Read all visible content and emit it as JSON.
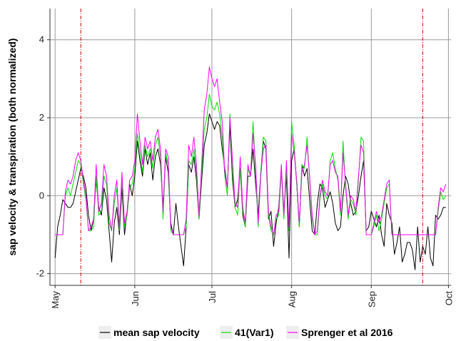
{
  "chart_data": {
    "type": "line",
    "title": "",
    "xlabel": "",
    "ylabel": "sap velocity & transpiration (both normalized)",
    "x_ticks": [
      "May",
      "Jun",
      "Jul",
      "Aug",
      "Sep",
      "Oct"
    ],
    "x_tick_days": [
      0,
      31,
      61,
      92,
      123,
      153
    ],
    "y_ticks": [
      -2,
      0,
      2,
      4
    ],
    "ylim": [
      -2.3,
      4.8
    ],
    "xlim_days": [
      -2,
      154
    ],
    "grid": true,
    "legend_position": "bottom",
    "vlines_days": [
      10,
      143
    ],
    "vline_color": "#cc0000",
    "colors": {
      "mean sap velocity": "#000000",
      "41(Var1)": "#00e000",
      "Sprenger et al 2016": "#ff00ff"
    },
    "series": [
      {
        "name": "mean sap velocity",
        "x": [
          0,
          1,
          2,
          3,
          4,
          5,
          6,
          7,
          8,
          9,
          10,
          11,
          12,
          13,
          14,
          15,
          16,
          17,
          18,
          19,
          20,
          21,
          22,
          23,
          24,
          25,
          26,
          27,
          28,
          29,
          30,
          31,
          32,
          33,
          34,
          35,
          36,
          37,
          38,
          39,
          40,
          41,
          42,
          43,
          44,
          45,
          46,
          47,
          48,
          49,
          50,
          51,
          52,
          53,
          54,
          55,
          56,
          57,
          58,
          59,
          60,
          61,
          62,
          63,
          64,
          65,
          66,
          67,
          68,
          69,
          70,
          71,
          72,
          73,
          74,
          75,
          76,
          77,
          78,
          79,
          80,
          81,
          82,
          83,
          84,
          85,
          86,
          87,
          88,
          89,
          90,
          91,
          92,
          93,
          94,
          95,
          96,
          97,
          98,
          99,
          100,
          101,
          102,
          103,
          104,
          105,
          106,
          107,
          108,
          109,
          110,
          111,
          112,
          113,
          114,
          115,
          116,
          117,
          118,
          119,
          120,
          121,
          122,
          123,
          124,
          125,
          126,
          127,
          128,
          129,
          130,
          131,
          132,
          133,
          134,
          135,
          136,
          137,
          138,
          139,
          140,
          141,
          142,
          143,
          144,
          145,
          146,
          147,
          148,
          149,
          150,
          151,
          152
        ],
        "values": [
          -1.6,
          -0.8,
          -0.5,
          -0.1,
          -0.2,
          -0.3,
          -0.3,
          -0.2,
          0.1,
          0.4,
          0.7,
          0.5,
          0.2,
          -0.5,
          -0.9,
          -0.6,
          0.4,
          -0.3,
          -0.5,
          0.2,
          -0.1,
          -0.9,
          -1.7,
          -0.7,
          -0.3,
          -1.0,
          0.2,
          -1.0,
          -0.4,
          0.3,
          0.0,
          0.5,
          1.4,
          0.9,
          0.5,
          1.2,
          0.8,
          1.1,
          0.4,
          1.0,
          1.2,
          0.8,
          -0.3,
          1.0,
          0.6,
          -0.7,
          -1.0,
          -0.2,
          -0.8,
          -1.3,
          -1.8,
          -0.8,
          0.8,
          0.6,
          1.0,
          0.4,
          -0.6,
          0.4,
          1.3,
          1.6,
          2.1,
          1.9,
          1.7,
          1.9,
          1.8,
          1.2,
          0.7,
          0.2,
          1.8,
          0.4,
          -0.3,
          -0.1,
          0.7,
          -0.5,
          -0.8,
          0.5,
          0.5,
          1.2,
          0.3,
          -0.5,
          0.6,
          1.4,
          1.2,
          -0.6,
          -0.4,
          -1.3,
          -0.7,
          -0.3,
          0.7,
          -0.4,
          0.5,
          -1.6,
          0.9,
          1.2,
          0.3,
          -0.8,
          0.8,
          0.5,
          0.7,
          -0.1,
          -0.9,
          -1.0,
          -0.2,
          0.3,
          0.2,
          -0.3,
          -0.1,
          0.1,
          -0.2,
          -0.7,
          -0.9,
          -0.8,
          0.0,
          0.5,
          0.3,
          -0.2,
          -0.5,
          -0.4,
          0.0,
          0.5,
          0.9,
          -0.9,
          -0.8,
          -0.4,
          -0.6,
          -0.8,
          -0.5,
          -1.0,
          -1.3,
          -0.2,
          -0.5,
          -0.7,
          -1.5,
          -1.2,
          -0.8,
          -1.7,
          -1.5,
          -1.2,
          -1.2,
          -1.4,
          -1.9,
          -0.8,
          -1.7,
          -1.3,
          -1.5,
          -0.8,
          -1.6,
          -1.8,
          -0.5,
          -0.6,
          -0.5,
          -0.3,
          -0.3
        ]
      },
      {
        "name": "41(Var1)",
        "x": [
          0,
          1,
          2,
          3,
          4,
          5,
          6,
          7,
          8,
          9,
          10,
          11,
          12,
          13,
          14,
          15,
          16,
          17,
          18,
          19,
          20,
          21,
          22,
          23,
          24,
          25,
          26,
          27,
          28,
          29,
          30,
          31,
          32,
          33,
          34,
          35,
          36,
          37,
          38,
          39,
          40,
          41,
          42,
          43,
          44,
          45,
          46,
          47,
          48,
          49,
          50,
          51,
          52,
          53,
          54,
          55,
          56,
          57,
          58,
          59,
          60,
          61,
          62,
          63,
          64,
          65,
          66,
          67,
          68,
          69,
          70,
          71,
          72,
          73,
          74,
          75,
          76,
          77,
          78,
          79,
          80,
          81,
          82,
          83,
          84,
          85,
          86,
          87,
          88,
          89,
          90,
          91,
          92,
          93,
          94,
          95,
          96,
          97,
          98,
          99,
          100,
          101,
          102,
          103,
          104,
          105,
          106,
          107,
          108,
          109,
          110,
          111,
          112,
          113,
          114,
          115,
          116,
          117,
          118,
          119,
          120,
          121,
          122,
          123,
          124,
          125,
          126,
          127,
          128,
          129,
          130,
          131,
          132,
          133,
          134,
          135,
          136,
          137,
          138,
          139,
          140,
          141,
          142,
          143,
          144,
          145,
          146,
          147,
          148,
          149,
          150,
          151,
          152
        ],
        "values": [
          -1.0,
          -1.0,
          -1.0,
          -1.0,
          0.0,
          0.2,
          0.0,
          0.3,
          0.6,
          0.9,
          0.8,
          0.3,
          -0.1,
          -0.9,
          -0.9,
          -0.8,
          0.5,
          -0.5,
          -0.4,
          0.5,
          0.3,
          -0.7,
          -0.9,
          -0.2,
          0.2,
          -0.9,
          0.4,
          -0.8,
          -0.5,
          0.2,
          0.3,
          0.7,
          1.6,
          1.1,
          0.6,
          1.3,
          1.0,
          1.2,
          0.7,
          1.3,
          1.5,
          1.0,
          -0.6,
          1.1,
          0.8,
          -0.9,
          -1.0,
          -1.0,
          -1.0,
          -1.0,
          -1.0,
          -0.8,
          0.9,
          0.8,
          1.2,
          0.6,
          -0.6,
          0.6,
          1.7,
          2.0,
          2.6,
          2.3,
          2.2,
          2.4,
          2.1,
          1.5,
          0.5,
          0.0,
          2.1,
          0.6,
          -0.3,
          -0.5,
          0.7,
          -0.4,
          -0.8,
          0.7,
          0.5,
          1.9,
          0.6,
          -0.8,
          0.6,
          1.5,
          1.4,
          -0.5,
          -0.9,
          -1.0,
          -0.6,
          -0.5,
          0.6,
          -0.6,
          0.7,
          -0.9,
          1.9,
          1.3,
          0.3,
          -0.8,
          0.8,
          0.7,
          1.5,
          0.4,
          -0.6,
          -1.0,
          -1.0,
          -0.1,
          0.3,
          0.0,
          -0.1,
          0.9,
          1.1,
          0.7,
          0.4,
          -0.5,
          1.4,
          0.2,
          -0.6,
          -0.1,
          -0.2,
          -0.5,
          0.4,
          1.5,
          1.4,
          -1.0,
          -1.0,
          -1.0,
          -0.8,
          -0.5,
          -0.9,
          -0.6,
          -0.2,
          0.2,
          0.3,
          -1.0,
          -1.0,
          -1.0,
          -1.0,
          -1.0,
          -1.0,
          -1.0,
          -1.0,
          -1.0,
          -1.0,
          -1.0,
          -1.0,
          -1.0,
          -1.0,
          -1.0,
          -1.0,
          -1.0,
          -1.0,
          -0.4,
          0.1,
          -0.1,
          0.0
        ]
      },
      {
        "name": "Sprenger et al 2016",
        "x": [
          0,
          1,
          2,
          3,
          4,
          5,
          6,
          7,
          8,
          9,
          10,
          11,
          12,
          13,
          14,
          15,
          16,
          17,
          18,
          19,
          20,
          21,
          22,
          23,
          24,
          25,
          26,
          27,
          28,
          29,
          30,
          31,
          32,
          33,
          34,
          35,
          36,
          37,
          38,
          39,
          40,
          41,
          42,
          43,
          44,
          45,
          46,
          47,
          48,
          49,
          50,
          51,
          52,
          53,
          54,
          55,
          56,
          57,
          58,
          59,
          60,
          61,
          62,
          63,
          64,
          65,
          66,
          67,
          68,
          69,
          70,
          71,
          72,
          73,
          74,
          75,
          76,
          77,
          78,
          79,
          80,
          81,
          82,
          83,
          84,
          85,
          86,
          87,
          88,
          89,
          90,
          91,
          92,
          93,
          94,
          95,
          96,
          97,
          98,
          99,
          100,
          101,
          102,
          103,
          104,
          105,
          106,
          107,
          108,
          109,
          110,
          111,
          112,
          113,
          114,
          115,
          116,
          117,
          118,
          119,
          120,
          121,
          122,
          123,
          124,
          125,
          126,
          127,
          128,
          129,
          130,
          131,
          132,
          133,
          134,
          135,
          136,
          137,
          138,
          139,
          140,
          141,
          142,
          143,
          144,
          145,
          146,
          147,
          148,
          149,
          150,
          151,
          152
        ],
        "values": [
          -1.0,
          -1.0,
          -1.0,
          -1.0,
          0.1,
          0.4,
          0.3,
          0.5,
          0.9,
          1.1,
          0.9,
          0.4,
          0.0,
          -0.9,
          -0.8,
          -0.6,
          0.8,
          -0.4,
          -0.2,
          0.8,
          0.5,
          -0.5,
          -0.9,
          0.0,
          0.4,
          -0.8,
          0.6,
          -0.7,
          -0.4,
          0.4,
          0.5,
          0.9,
          2.1,
          1.4,
          0.8,
          1.5,
          1.2,
          1.4,
          0.9,
          1.5,
          1.7,
          1.2,
          -0.4,
          1.2,
          1.0,
          -0.8,
          -1.0,
          -1.0,
          -1.0,
          -1.0,
          -1.0,
          -0.6,
          1.3,
          1.0,
          1.5,
          0.8,
          -0.5,
          0.8,
          2.2,
          2.6,
          3.3,
          3.0,
          2.8,
          3.0,
          2.4,
          1.9,
          0.6,
          0.2,
          2.0,
          0.9,
          -0.2,
          -0.3,
          1.0,
          -0.3,
          -0.7,
          0.8,
          0.5,
          1.6,
          0.8,
          -0.7,
          0.5,
          1.2,
          1.3,
          -0.4,
          -0.8,
          -1.0,
          -0.5,
          -0.4,
          0.8,
          -0.5,
          0.9,
          -0.8,
          1.6,
          1.1,
          0.4,
          -0.7,
          0.6,
          0.8,
          1.3,
          0.5,
          -0.5,
          -1.0,
          -0.9,
          0.0,
          0.4,
          0.1,
          0.0,
          0.8,
          0.9,
          0.6,
          0.5,
          -0.4,
          1.1,
          0.3,
          -0.5,
          0.0,
          -0.1,
          -0.4,
          0.5,
          1.3,
          1.1,
          -1.0,
          -1.0,
          -1.0,
          -0.7,
          -0.4,
          -0.7,
          -0.5,
          -0.1,
          0.3,
          0.4,
          -1.0,
          -1.0,
          -1.0,
          -1.0,
          -1.0,
          -1.0,
          -1.0,
          -1.0,
          -1.0,
          -1.0,
          -1.0,
          -1.0,
          -1.0,
          -1.0,
          -1.0,
          -1.0,
          -1.0,
          -1.0,
          -0.3,
          0.2,
          0.1,
          0.3
        ]
      }
    ]
  }
}
